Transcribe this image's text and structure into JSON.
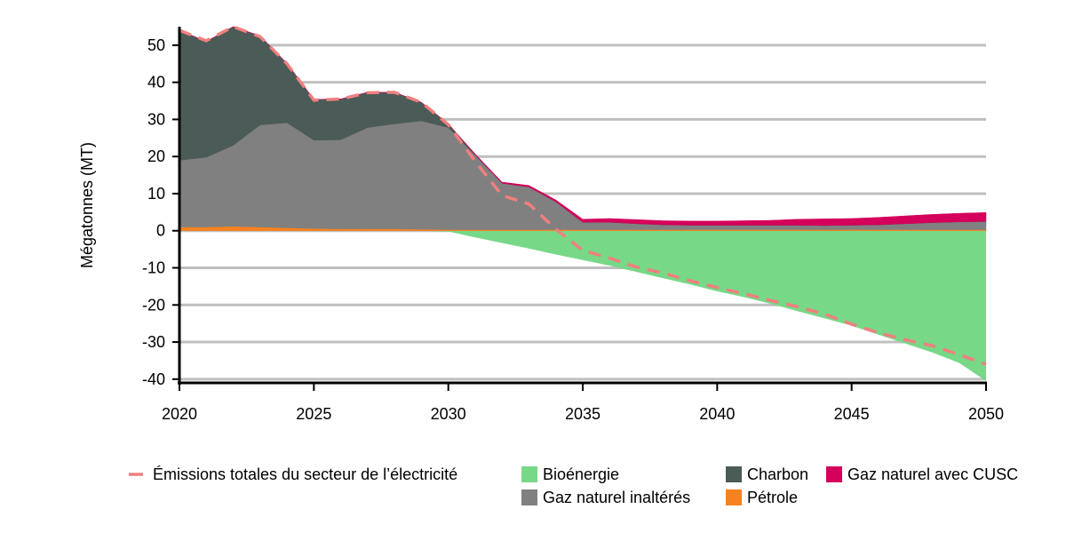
{
  "chart_data": {
    "type": "area",
    "ylabel": "Mégatonnes (MT)",
    "xlabel": "",
    "xlim": [
      2020,
      2050
    ],
    "ylim": [
      -41,
      55
    ],
    "x_ticks": [
      2020,
      2025,
      2030,
      2035,
      2040,
      2045,
      2050
    ],
    "x_tick_labels": [
      "2020",
      "2025",
      "2030",
      "2035",
      "2040",
      "2045",
      "2050"
    ],
    "y_ticks": [
      -40,
      -30,
      -20,
      -10,
      0,
      10,
      20,
      30,
      40,
      50
    ],
    "y_tick_labels": [
      "-40",
      "-30",
      "-20",
      "-10",
      "0",
      "10",
      "20",
      "30",
      "40",
      "50"
    ],
    "grid": true,
    "x": [
      2020,
      2021,
      2022,
      2023,
      2024,
      2025,
      2026,
      2027,
      2028,
      2029,
      2030,
      2031,
      2032,
      2033,
      2034,
      2035,
      2036,
      2037,
      2038,
      2039,
      2040,
      2041,
      2042,
      2043,
      2044,
      2045,
      2046,
      2047,
      2048,
      2049,
      2050
    ],
    "negative_series": [
      {
        "key": "bio",
        "name": "Bioénergie",
        "color": "#77d887",
        "values": [
          0,
          0,
          0,
          0,
          0,
          0,
          0,
          0,
          0,
          0,
          -0.2,
          -1.8,
          -3.3,
          -4.8,
          -6.4,
          -7.9,
          -9.4,
          -11.1,
          -12.8,
          -14.5,
          -16.3,
          -17.9,
          -19.7,
          -21.7,
          -23.6,
          -25.6,
          -28,
          -30.4,
          -32.8,
          -35.6,
          -40.5
        ]
      }
    ],
    "positive_series": [
      {
        "key": "petrole",
        "name": "Pétrole",
        "color": "#f58220",
        "values": [
          1,
          1,
          1.2,
          1,
          0.8,
          0.6,
          0.5,
          0.5,
          0.5,
          0.4,
          0.3,
          0.3,
          0.3,
          0.3,
          0.3,
          0.3,
          0.3,
          0.3,
          0.3,
          0.3,
          0.3,
          0.3,
          0.3,
          0.3,
          0.3,
          0.3,
          0.3,
          0.3,
          0.3,
          0.3,
          0.3
        ]
      },
      {
        "key": "gaz_inalt",
        "name": "Gaz naturel inaltérés",
        "color": "#808080",
        "values": [
          18,
          18.8,
          21.8,
          27.5,
          28.3,
          23.8,
          24,
          27.3,
          28.3,
          29.2,
          27.5,
          20,
          12.5,
          11.5,
          7.5,
          2,
          2,
          1.6,
          1.3,
          1.2,
          1.2,
          1.2,
          1.2,
          1.2,
          1.1,
          1.2,
          1.3,
          1.6,
          1.9,
          2.1,
          2.2
        ]
      },
      {
        "key": "charbon",
        "name": "Charbon",
        "color": "#4b5b57",
        "values": [
          35,
          31.2,
          32,
          24,
          16,
          11,
          11,
          9.5,
          8.5,
          5,
          1,
          0.2,
          0,
          0,
          0,
          0,
          0,
          0,
          0,
          0,
          0,
          0,
          0,
          0,
          0,
          0,
          0,
          0,
          0,
          0,
          0
        ]
      },
      {
        "key": "gaz_cusc",
        "name": "Gaz naturel avec CUSC",
        "color": "#d5005b",
        "values": [
          0,
          0,
          0,
          0,
          0,
          0,
          0,
          0,
          0,
          0,
          0,
          0.2,
          0.3,
          0.4,
          0.5,
          0.8,
          1,
          1.1,
          1.1,
          1.1,
          1.1,
          1.2,
          1.3,
          1.6,
          1.8,
          1.8,
          2,
          2.1,
          2.2,
          2.3,
          2.4
        ]
      }
    ],
    "line_series": [
      {
        "key": "total",
        "name": "Émissions totales du secteur de l’électricité",
        "color": "#f07f7f",
        "dashed": true,
        "x": [
          2020,
          2021,
          2022,
          2023,
          2024,
          2025,
          2026,
          2027,
          2028,
          2029,
          2030,
          2031,
          2032,
          2033,
          2034,
          2035,
          2036,
          2037,
          2038,
          2039,
          2040,
          2041,
          2042,
          2043,
          2044,
          2045,
          2046,
          2047,
          2048,
          2049,
          2050
        ],
        "values": [
          54,
          51.2,
          55,
          52.3,
          45,
          35.2,
          35.5,
          37.2,
          37.3,
          34.6,
          28.6,
          18.7,
          9.5,
          7.2,
          0.4,
          -5.3,
          -7.4,
          -9.8,
          -11.4,
          -13.5,
          -15.3,
          -17,
          -18.8,
          -20.5,
          -22.5,
          -25.2,
          -27.5,
          -29.4,
          -31,
          -33.4,
          -36
        ]
      }
    ],
    "legend": [
      {
        "label": "Émissions totales du secteur de l’électricité",
        "kind": "dash",
        "color": "#f07f7f"
      },
      {
        "label": "Bioénergie",
        "kind": "box",
        "color": "#77d887"
      },
      {
        "label": "Charbon",
        "kind": "box",
        "color": "#4b5b57"
      },
      {
        "label": "Gaz naturel avec CUSC",
        "kind": "box",
        "color": "#d5005b"
      },
      {
        "label": "Gaz naturel inaltérés",
        "kind": "box",
        "color": "#808080"
      },
      {
        "label": "Pétrole",
        "kind": "box",
        "color": "#f58220"
      }
    ],
    "legend_position": "bottom"
  }
}
